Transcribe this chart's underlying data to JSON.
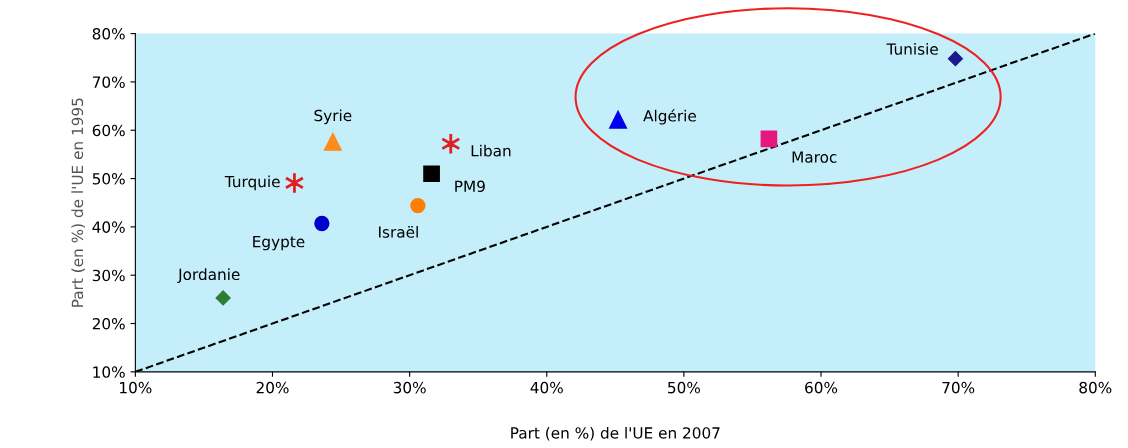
{
  "chart_data": {
    "type": "scatter",
    "xlabel": "Part (en %) de l'UE en 2007",
    "ylabel": "Part (en %) de l'UE en 1995",
    "xlim": [
      10,
      80
    ],
    "ylim": [
      10,
      80
    ],
    "xticks": [
      {
        "value": 10,
        "label": "10%"
      },
      {
        "value": 20,
        "label": "20%"
      },
      {
        "value": 30,
        "label": "30%"
      },
      {
        "value": 40,
        "label": "40%"
      },
      {
        "value": 50,
        "label": "50%"
      },
      {
        "value": 60,
        "label": "60%"
      },
      {
        "value": 70,
        "label": "70%"
      },
      {
        "value": 80,
        "label": "80%"
      }
    ],
    "yticks": [
      {
        "value": 10,
        "label": "10%"
      },
      {
        "value": 20,
        "label": "20%"
      },
      {
        "value": 30,
        "label": "30%"
      },
      {
        "value": 40,
        "label": "40%"
      },
      {
        "value": 50,
        "label": "50%"
      },
      {
        "value": 60,
        "label": "60%"
      },
      {
        "value": 70,
        "label": "70%"
      },
      {
        "value": 80,
        "label": "80%"
      }
    ],
    "grid": false,
    "legend": false,
    "series": [
      {
        "name": "Tunisie",
        "color": "#1a1a8c",
        "marker": "diamond",
        "x": [
          69.8
        ],
        "values": [
          74.8
        ]
      },
      {
        "name": "Algérie",
        "color": "#0000ee",
        "marker": "triangle",
        "x": [
          45.2
        ],
        "values": [
          62.2
        ]
      },
      {
        "name": "Maroc",
        "color": "#e8177d",
        "marker": "square",
        "x": [
          56.2
        ],
        "values": [
          58.2
        ]
      },
      {
        "name": "Syrie",
        "color": "#ff8c1a",
        "marker": "triangle",
        "x": [
          24.4
        ],
        "values": [
          57.6
        ]
      },
      {
        "name": "Liban",
        "color": "#e02020",
        "marker": "cross",
        "x": [
          33.0
        ],
        "values": [
          57.2
        ]
      },
      {
        "name": "PM9",
        "color": "#000000",
        "marker": "square",
        "x": [
          31.6
        ],
        "values": [
          51.0
        ]
      },
      {
        "name": "Turquie",
        "color": "#e02020",
        "marker": "cross",
        "x": [
          21.6
        ],
        "values": [
          49.1
        ]
      },
      {
        "name": "Israël",
        "color": "#ff7f00",
        "marker": "circle",
        "x": [
          30.6
        ],
        "values": [
          44.4
        ]
      },
      {
        "name": "Egypte",
        "color": "#0000cc",
        "marker": "circle",
        "x": [
          23.6
        ],
        "values": [
          40.7
        ]
      },
      {
        "name": "Jordanie",
        "color": "#2e7d32",
        "marker": "diamond",
        "x": [
          16.4
        ],
        "values": [
          25.3
        ]
      },
      {
        "type": "line",
        "color": "#000000",
        "line_style": "dashed",
        "marker": "none",
        "x": [
          10,
          80
        ],
        "values": [
          10,
          80
        ]
      }
    ]
  }
}
